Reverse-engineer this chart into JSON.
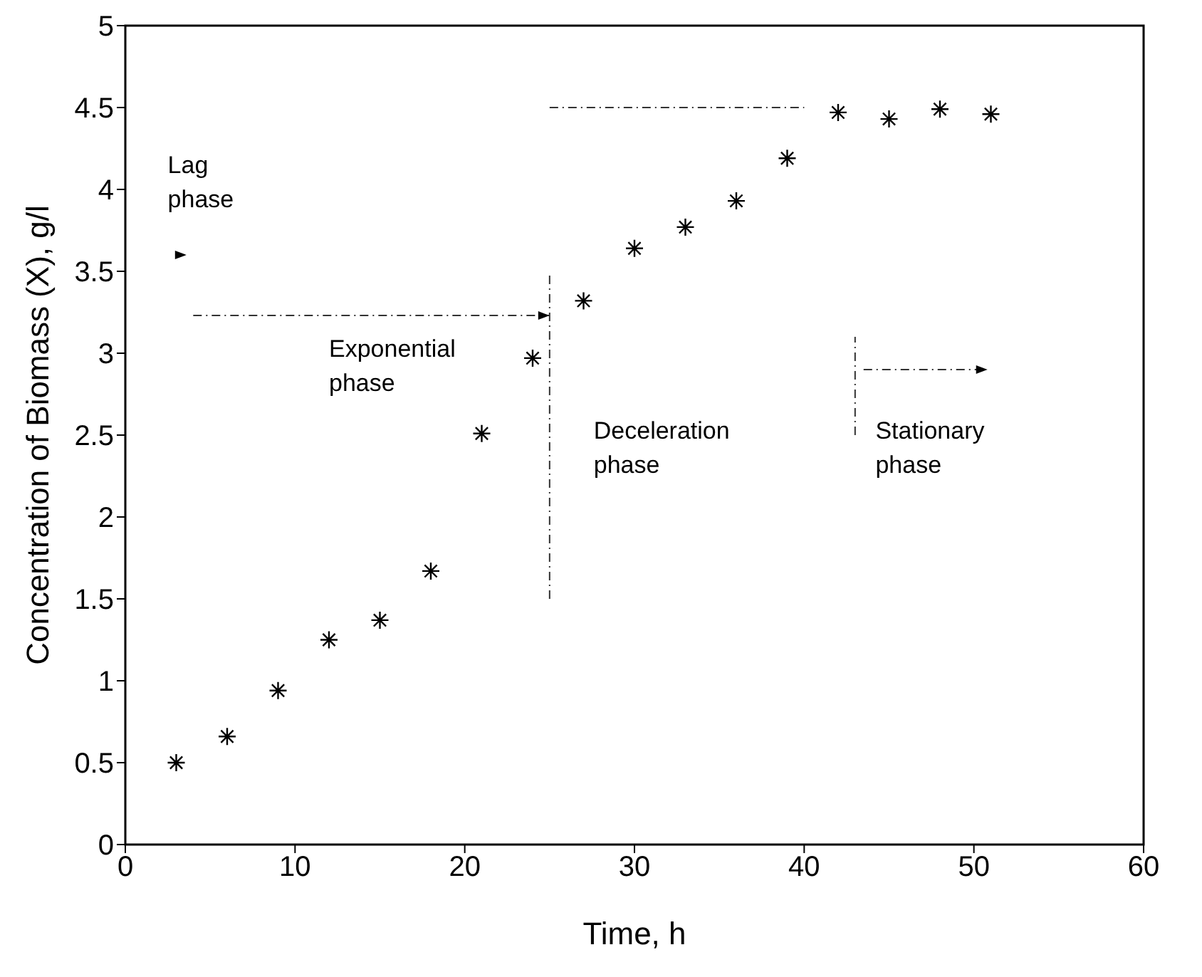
{
  "chart_data": {
    "type": "scatter",
    "xlabel": "Time, h",
    "ylabel": "Concentration of Biomass (X), g/l",
    "x": [
      3,
      6,
      9,
      12,
      15,
      18,
      21,
      24,
      27,
      30,
      33,
      36,
      39,
      42,
      45,
      48,
      51
    ],
    "series": [
      {
        "color": "#000000",
        "values": [
          0.5,
          0.66,
          0.94,
          1.25,
          1.37,
          1.67,
          2.51,
          2.97,
          3.32,
          3.64,
          3.77,
          3.93,
          4.19,
          4.47,
          4.43,
          4.49,
          4.46
        ]
      }
    ],
    "xlim": [
      0,
      60
    ],
    "xticks": [
      0,
      10,
      20,
      30,
      40,
      50,
      60
    ],
    "ylim": [
      0,
      5
    ],
    "yticks": [
      0,
      0.5,
      1,
      1.5,
      2,
      2.5,
      3,
      3.5,
      4,
      4.5,
      5
    ],
    "grid": false,
    "legend": false,
    "marker": "cross",
    "annotations": [
      "Lag phase",
      "Exponential phase",
      "Deceleration phase",
      "Stationary phase"
    ]
  }
}
